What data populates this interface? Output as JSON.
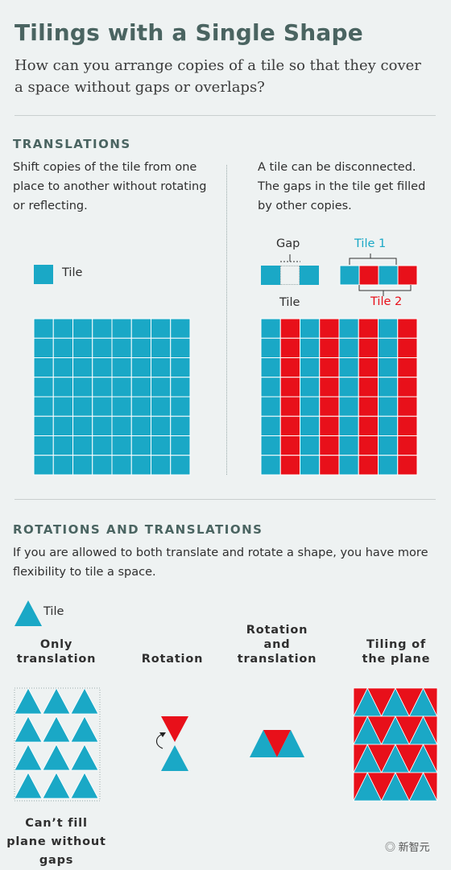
{
  "title": "Tilings with a Single Shape",
  "subtitle": "How can you arrange copies of a tile so that they cover a space without gaps or overlaps?",
  "colors": {
    "teal": "#1aa8c6",
    "red": "#e8101a",
    "heading": "#4a6461",
    "background": "#eef2f2"
  },
  "translations": {
    "heading": "TRANSLATIONS",
    "left_text": "Shift copies of the tile from one place to another without rotating or reflecting.",
    "right_text": "A tile can be disconnected. The gaps in the tile get filled by other copies.",
    "tile_label": "Tile",
    "gap_label": "Gap",
    "tile1_label": "Tile 1",
    "tile2_label": "Tile 2",
    "tile_label_right": "Tile"
  },
  "rotations": {
    "heading": "ROTATIONS AND TRANSLATIONS",
    "text": "If you are allowed to both translate and rotate a shape, you have more flexibility to tile a space.",
    "tile_label": "Tile",
    "col1": "Only translation",
    "col2": "Rotation",
    "col3": "Rotation and translation",
    "col4": "Tiling of the plane",
    "caption": "Can’t fill plane without gaps"
  },
  "watermark": "新智元"
}
